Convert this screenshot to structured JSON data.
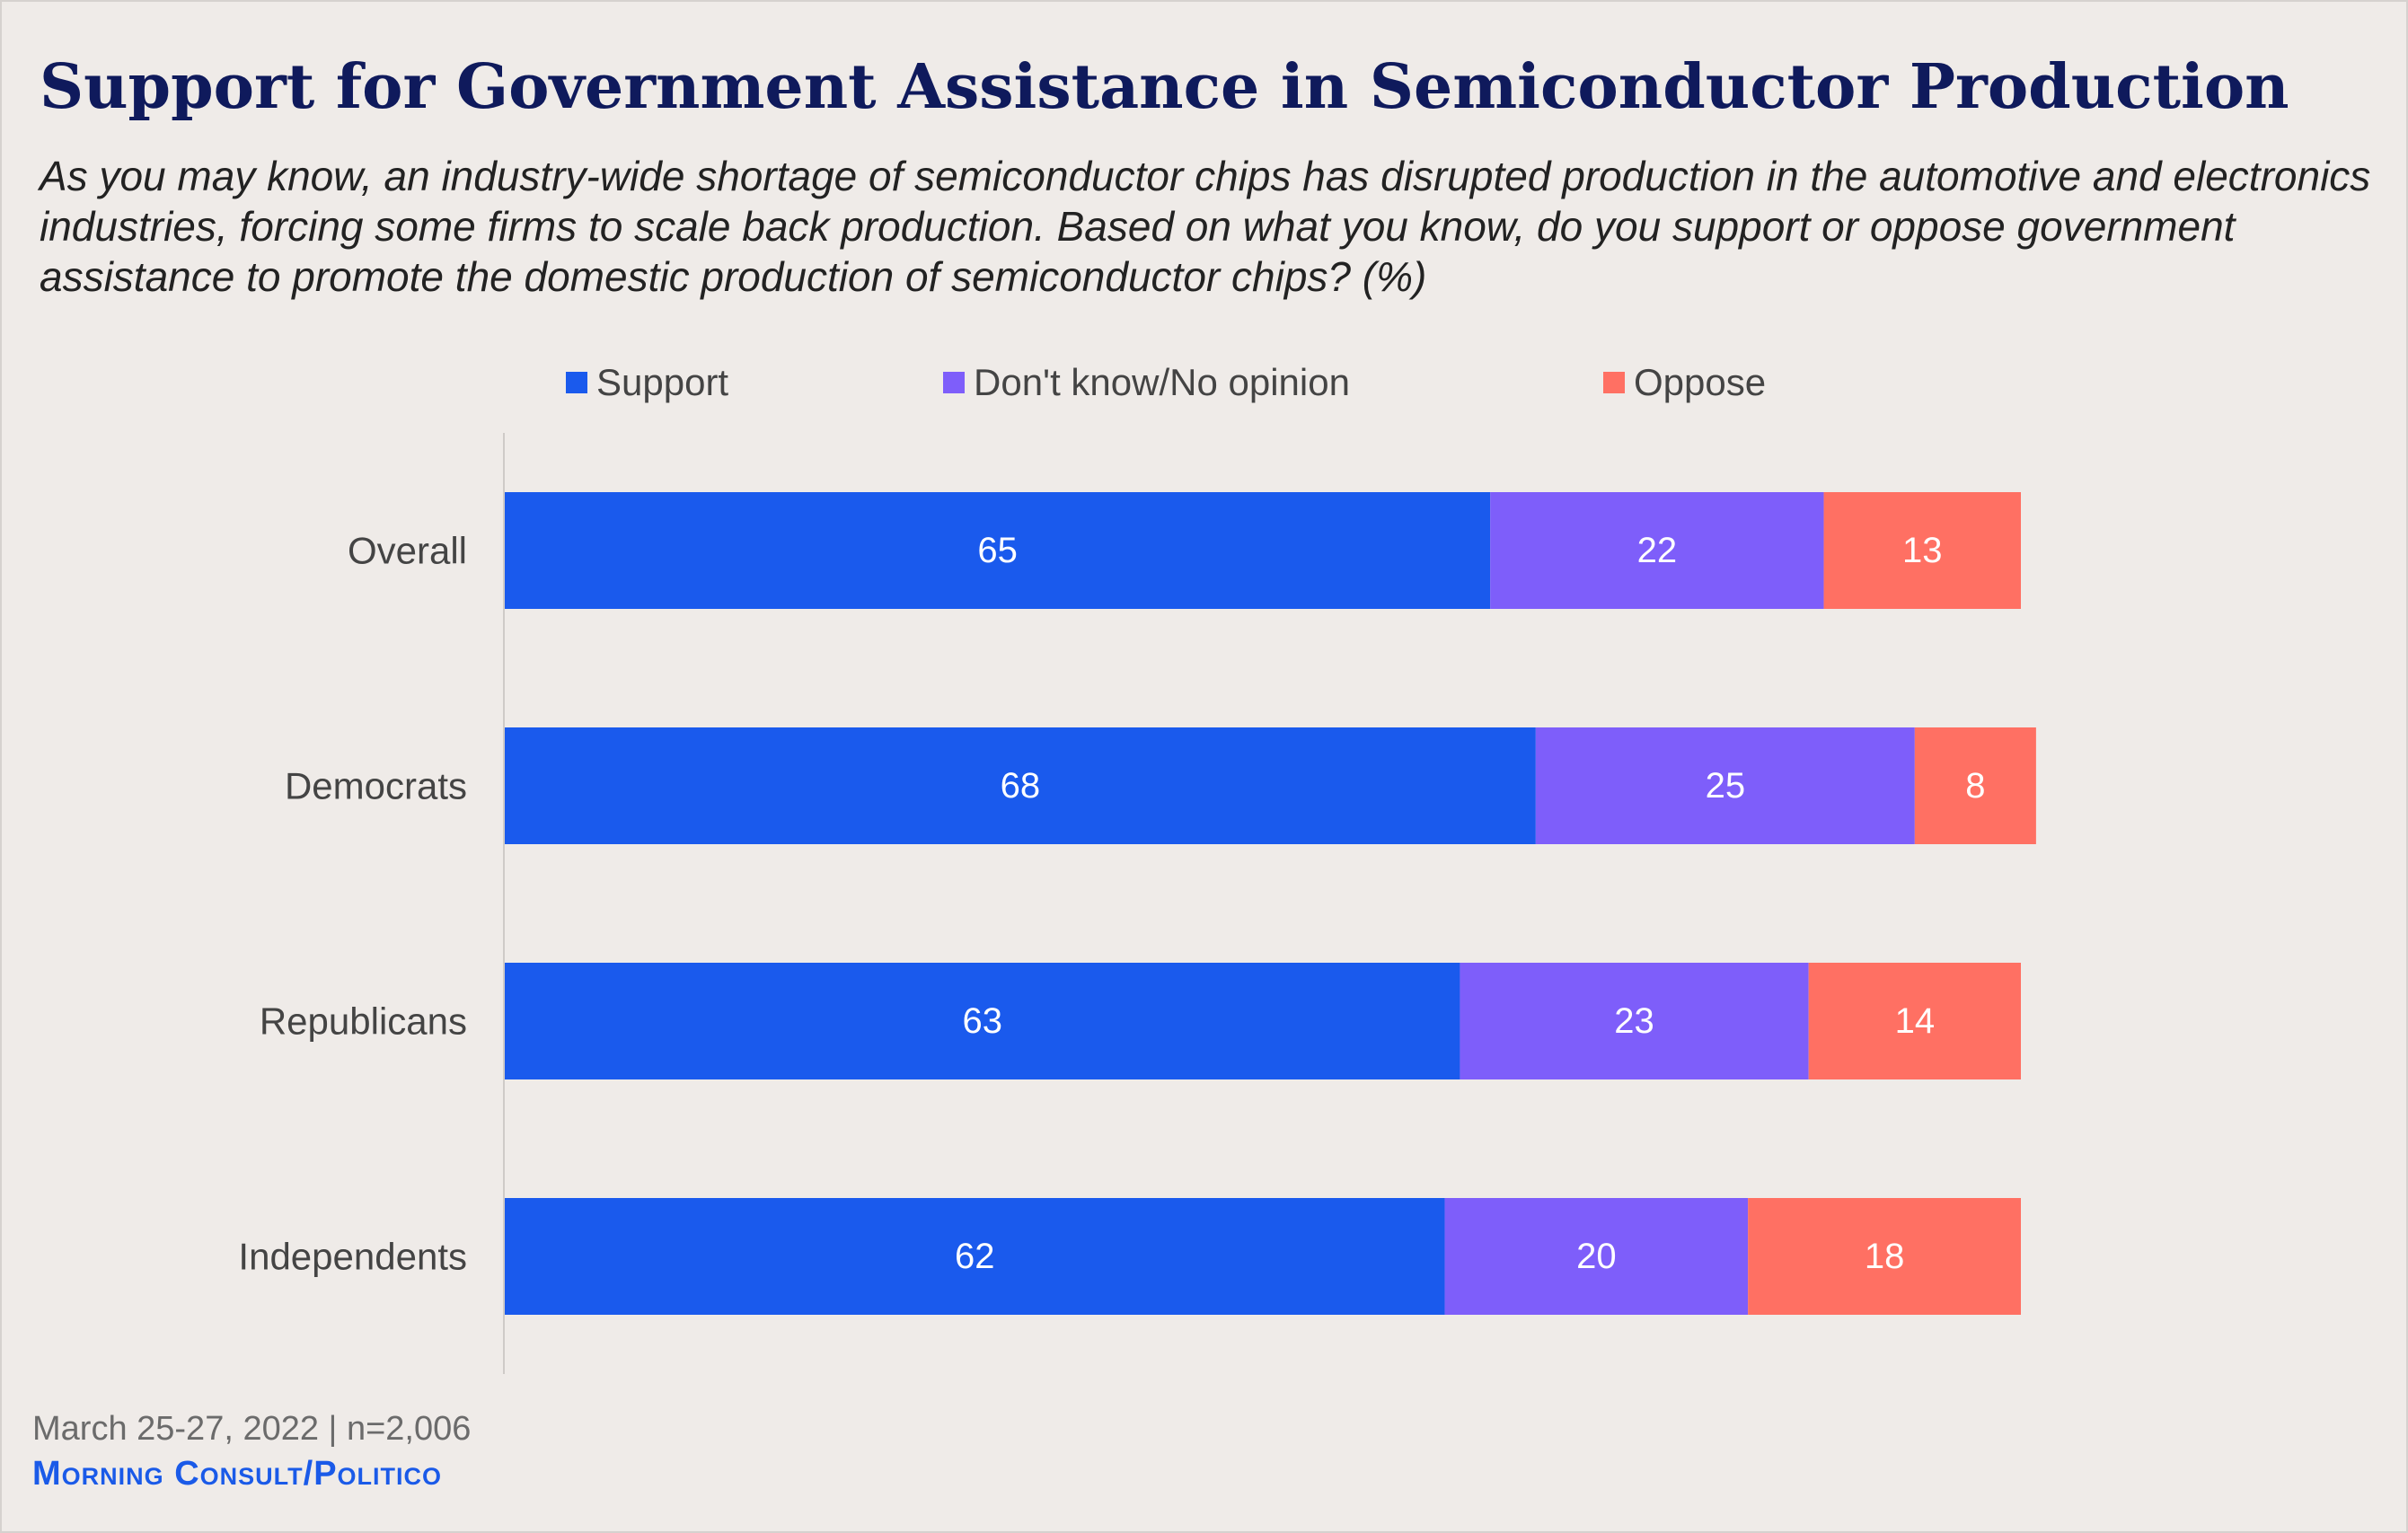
{
  "title": "Support for Government Assistance in Semiconductor Production",
  "subtitle": "As you may know, an industry-wide shortage of semiconductor chips has disrupted production in the automotive and electronics industries, forcing some firms to scale back production. Based on what you know, do you support or oppose government assistance to promote the domestic production of semiconductor chips? (%)",
  "footer": {
    "date_sample": "March 25-27, 2022 | n=2,006",
    "source": "Morning Consult/Politico"
  },
  "chart_data": {
    "type": "bar",
    "orientation": "horizontal",
    "stacked": true,
    "legend_position": "top",
    "grid": false,
    "categories": [
      "Overall",
      "Democrats",
      "Republicans",
      "Independents"
    ],
    "series": [
      {
        "name": "Support",
        "color": "#1a5aed",
        "values": [
          65,
          68,
          63,
          62
        ]
      },
      {
        "name": "Don't know/No opinion",
        "color": "#7e5efa",
        "values": [
          22,
          25,
          23,
          20
        ]
      },
      {
        "name": "Oppose",
        "color": "#ff7063",
        "values": [
          13,
          8,
          14,
          18
        ]
      }
    ],
    "xlim": [
      0,
      100
    ]
  }
}
